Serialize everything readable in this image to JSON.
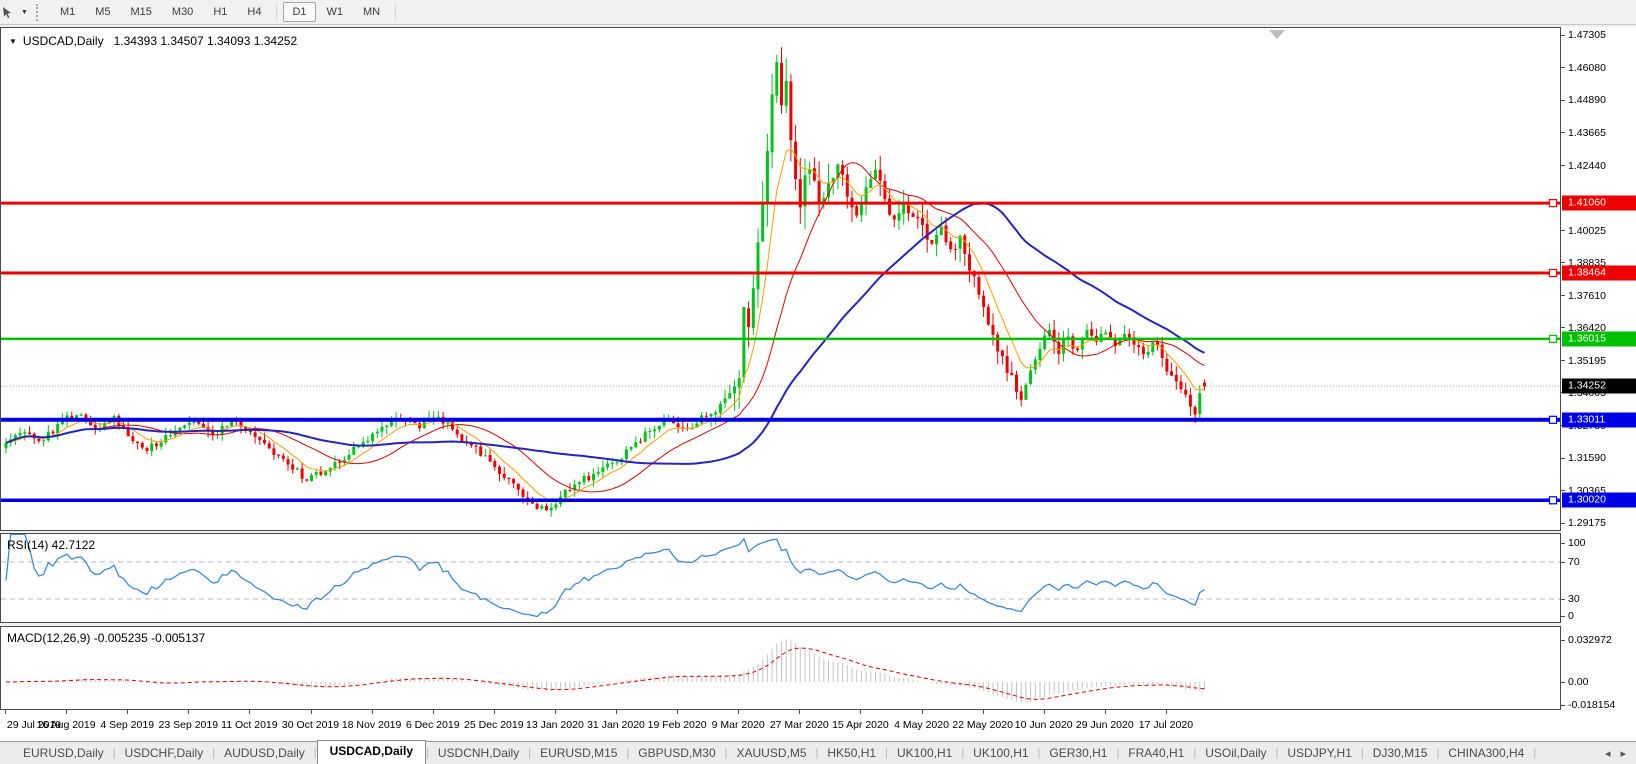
{
  "toolbar": {
    "timeframes": [
      "M1",
      "M5",
      "M15",
      "M30",
      "H1",
      "H4",
      "D1",
      "W1",
      "MN"
    ],
    "active_timeframe": "D1"
  },
  "chart": {
    "symbol_label": "USDCAD,Daily",
    "ohlc_label": "1.34393 1.34507 1.34093 1.34252"
  },
  "chart_data": {
    "type": "candlestick",
    "symbol": "USDCAD",
    "timeframe": "Daily",
    "last_ohlc": {
      "open": 1.34393,
      "high": 1.34507,
      "low": 1.34093,
      "close": 1.34252
    },
    "ylim": [
      1.29175,
      1.47305
    ],
    "y_ticks": [
      "1.47305",
      "1.46080",
      "1.44890",
      "1.43665",
      "1.42440",
      "1.40025",
      "1.38835",
      "1.37610",
      "1.36420",
      "1.35195",
      "1.34005",
      "1.32780",
      "1.31590",
      "1.30365",
      "1.29175"
    ],
    "x_ticks": [
      "29 Jul 2019",
      "16 Aug 2019",
      "4 Sep 2019",
      "23 Sep 2019",
      "11 Oct 2019",
      "30 Oct 2019",
      "18 Nov 2019",
      "6 Dec 2019",
      "25 Dec 2019",
      "13 Jan 2020",
      "31 Jan 2020",
      "19 Feb 2020",
      "9 Mar 2020",
      "27 Mar 2020",
      "15 Apr 2020",
      "4 May 2020",
      "22 May 2020",
      "10 Jun 2020",
      "29 Jun 2020",
      "17 Jul 2020"
    ],
    "horizontal_lines": [
      {
        "label": "1.41060",
        "price": 1.4106,
        "color": "#ee0000",
        "width": 3
      },
      {
        "label": "1.38464",
        "price": 1.38464,
        "color": "#ee0000",
        "width": 3
      },
      {
        "label": "1.36015",
        "price": 1.36015,
        "color": "#00c000",
        "width": 2.5
      },
      {
        "label": "1.33011",
        "price": 1.33011,
        "color": "#0000e6",
        "width": 4
      },
      {
        "label": "1.30020",
        "price": 1.3002,
        "color": "#0000e6",
        "width": 3.5
      }
    ],
    "current_price_line": {
      "label": "1.34252",
      "price": 1.34252,
      "line_color": "#b0b0b0",
      "label_bg": "#000000"
    },
    "candles": {
      "count": 256,
      "up_color": "#00c31c",
      "down_color": "#ef0000",
      "close_anchors": [
        [
          0,
          1.3215
        ],
        [
          4,
          1.3255
        ],
        [
          8,
          1.3225
        ],
        [
          12,
          1.33
        ],
        [
          16,
          1.332
        ],
        [
          20,
          1.327
        ],
        [
          23,
          1.3315
        ],
        [
          26,
          1.324
        ],
        [
          30,
          1.3185
        ],
        [
          34,
          1.3245
        ],
        [
          39,
          1.329
        ],
        [
          44,
          1.3245
        ],
        [
          48,
          1.33
        ],
        [
          52,
          1.3255
        ],
        [
          56,
          1.3195
        ],
        [
          60,
          1.3135
        ],
        [
          64,
          1.3075
        ],
        [
          68,
          1.311
        ],
        [
          73,
          1.317
        ],
        [
          78,
          1.325
        ],
        [
          83,
          1.3305
        ],
        [
          88,
          1.327
        ],
        [
          91,
          1.331
        ],
        [
          95,
          1.3265
        ],
        [
          99,
          1.3205
        ],
        [
          104,
          1.3125
        ],
        [
          108,
          1.3065
        ],
        [
          112,
          1.299
        ],
        [
          115,
          1.2965
        ],
        [
          118,
          1.3015
        ],
        [
          121,
          1.306
        ],
        [
          125,
          1.31
        ],
        [
          129,
          1.314
        ],
        [
          133,
          1.32
        ],
        [
          137,
          1.326
        ],
        [
          141,
          1.3305
        ],
        [
          145,
          1.327
        ],
        [
          149,
          1.3315
        ],
        [
          152,
          1.336
        ],
        [
          154,
          1.34
        ],
        [
          156,
          1.3455
        ],
        [
          157,
          1.372
        ],
        [
          158,
          1.3645
        ],
        [
          159,
          1.379
        ],
        [
          160,
          1.396
        ],
        [
          161,
          1.411
        ],
        [
          162,
          1.43
        ],
        [
          163,
          1.451
        ],
        [
          164,
          1.463
        ],
        [
          165,
          1.447
        ],
        [
          166,
          1.456
        ],
        [
          167,
          1.434
        ],
        [
          168,
          1.4195
        ],
        [
          169,
          1.409
        ],
        [
          171,
          1.423
        ],
        [
          173,
          1.4105
        ],
        [
          175,
          1.418
        ],
        [
          177,
          1.425
        ],
        [
          179,
          1.413
        ],
        [
          181,
          1.406
        ],
        [
          183,
          1.4165
        ],
        [
          185,
          1.423
        ],
        [
          187,
          1.412
        ],
        [
          189,
          1.4045
        ],
        [
          191,
          1.411
        ],
        [
          193,
          1.4055
        ],
        [
          195,
          1.4025
        ],
        [
          197,
          1.3955
        ],
        [
          199,
          1.402
        ],
        [
          201,
          1.3935
        ],
        [
          203,
          1.3985
        ],
        [
          205,
          1.3855
        ],
        [
          207,
          1.3765
        ],
        [
          209,
          1.3655
        ],
        [
          211,
          1.3555
        ],
        [
          213,
          1.3475
        ],
        [
          215,
          1.3405
        ],
        [
          216,
          1.3375
        ],
        [
          218,
          1.3485
        ],
        [
          220,
          1.3565
        ],
        [
          222,
          1.3635
        ],
        [
          224,
          1.3545
        ],
        [
          226,
          1.361
        ],
        [
          228,
          1.356
        ],
        [
          230,
          1.3635
        ],
        [
          232,
          1.359
        ],
        [
          234,
          1.3625
        ],
        [
          236,
          1.3575
        ],
        [
          238,
          1.362
        ],
        [
          240,
          1.358
        ],
        [
          242,
          1.3545
        ],
        [
          244,
          1.359
        ],
        [
          246,
          1.353
        ],
        [
          248,
          1.3465
        ],
        [
          250,
          1.3415
        ],
        [
          252,
          1.335
        ],
        [
          253,
          1.332
        ],
        [
          254,
          1.34
        ],
        [
          255,
          1.3425
        ]
      ]
    },
    "moving_averages": [
      {
        "name": "fast",
        "type": "ema",
        "period": 8,
        "color": "#ff9d00",
        "width": 1
      },
      {
        "name": "medium",
        "type": "sma",
        "period": 20,
        "color": "#e00000",
        "width": 1
      },
      {
        "name": "slow",
        "type": "sma",
        "period": 50,
        "color": "#2525bd",
        "width": 2
      }
    ],
    "indicators": [
      {
        "name": "RSI",
        "params": [
          14
        ],
        "value": 42.7122,
        "range": [
          0,
          100
        ],
        "levels": [
          70,
          30
        ]
      },
      {
        "name": "MACD",
        "params": [
          12,
          26,
          9
        ],
        "values": [
          -0.005235,
          -0.005137
        ],
        "range": [
          -0.018154,
          0.032972
        ]
      }
    ]
  },
  "rsi_panel": {
    "label": "RSI(14) 42.7122",
    "axis_labels": [
      "100",
      "70",
      "30",
      "0"
    ],
    "line_color": "#3a8ad8",
    "level_color": "#b8b8b8"
  },
  "macd_panel": {
    "label": "MACD(12,26,9) -0.005235 -0.005137",
    "axis_labels": [
      "0.032972",
      "0.00",
      "-0.018154"
    ],
    "histogram_color": "#c4c4c4",
    "signal_color": "#e00000"
  },
  "tab_bar": {
    "tabs": [
      "EURUSD,Daily",
      "USDCHF,Daily",
      "AUDUSD,Daily",
      "USDCAD,Daily",
      "USDCNH,Daily",
      "EURUSD,M15",
      "GBPUSD,M30",
      "XAUUSD,M5",
      "HK50,H1",
      "UK100,H1",
      "UK100,H1",
      "GER30,H1",
      "FRA40,H1",
      "USOil,Daily",
      "USDJPY,H1",
      "DJ30,M15",
      "CHINA300,H4"
    ],
    "active_index": 3,
    "scroll_left_arrow": "◂",
    "scroll_right_arrow": "▸"
  }
}
